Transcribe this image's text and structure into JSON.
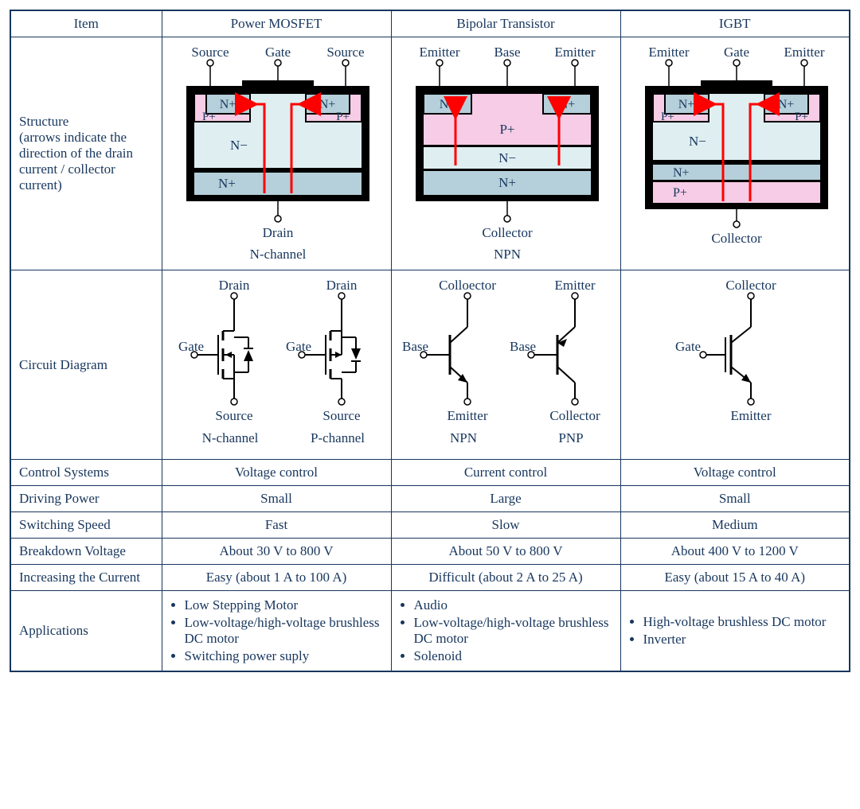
{
  "colors": {
    "text": "#17365d",
    "black": "#000000",
    "nplus_fill": "#b5d0da",
    "nminus_fill": "#dfeef1",
    "pplus_fill": "#f7cce6",
    "arrow": "#ff0000"
  },
  "headers": {
    "item": "Item",
    "c1": "Power MOSFET",
    "c2": "Bipolar Transistor",
    "c3": "IGBT"
  },
  "rows": {
    "structure": "Structure\n(arrows indicate the direction of the drain current / collector current)",
    "circuit": "Circuit Diagram",
    "control": "Control Systems",
    "driving": "Driving Power",
    "switching": "Switching Speed",
    "breakdown": "Breakdown Voltage",
    "current": "Increasing the Current",
    "apps": "Applications"
  },
  "structure": {
    "mosfet": {
      "top_terms": [
        "Source",
        "Gate",
        "Source"
      ],
      "bottom_term": "Drain",
      "caption": "N-channel",
      "layers": [
        {
          "label": "N+",
          "color": "#b5d0da"
        },
        {
          "label": "P+",
          "color": "#f7cce6"
        },
        {
          "label": "N−",
          "color": "#dfeef1"
        },
        {
          "label": "N+",
          "color": "#b5d0da"
        }
      ]
    },
    "bjt": {
      "top_terms": [
        "Emitter",
        "Base",
        "Emitter"
      ],
      "bottom_term": "Collector",
      "caption": "NPN",
      "layers": [
        {
          "label": "N+",
          "color": "#b5d0da"
        },
        {
          "label": "P+",
          "color": "#f7cce6"
        },
        {
          "label": "N−",
          "color": "#dfeef1"
        },
        {
          "label": "N+",
          "color": "#b5d0da"
        }
      ]
    },
    "igbt": {
      "top_terms": [
        "Emitter",
        "Gate",
        "Emitter"
      ],
      "bottom_term": "Collector",
      "caption": "",
      "layers": [
        {
          "label": "N+",
          "color": "#b5d0da"
        },
        {
          "label": "P+",
          "color": "#f7cce6"
        },
        {
          "label": "N−",
          "color": "#dfeef1"
        },
        {
          "label": "N+",
          "color": "#b5d0da"
        },
        {
          "label": "P+",
          "color": "#f7cce6"
        }
      ]
    }
  },
  "circuit": {
    "mosfet": {
      "left": {
        "top": "Drain",
        "left": "Gate",
        "bottom": "Source",
        "caption": "N-channel"
      },
      "right": {
        "top": "Drain",
        "left": "Gate",
        "bottom": "Source",
        "caption": "P-channel"
      }
    },
    "bjt": {
      "left": {
        "top": "Colloector",
        "left": "Base",
        "bottom": "Emitter",
        "caption": "NPN"
      },
      "right": {
        "top": "Emitter",
        "left": "Base",
        "bottom": "Collector",
        "caption": "PNP"
      }
    },
    "igbt": {
      "top": "Collector",
      "left": "Gate",
      "bottom": "Emitter"
    }
  },
  "control": {
    "c1": "Voltage control",
    "c2": "Current control",
    "c3": "Voltage control"
  },
  "driving": {
    "c1": "Small",
    "c2": "Large",
    "c3": "Small"
  },
  "switching": {
    "c1": "Fast",
    "c2": "Slow",
    "c3": "Medium"
  },
  "breakdown": {
    "c1": "About 30 V to 800 V",
    "c2": "About 50 V to 800 V",
    "c3": "About 400 V to 1200 V"
  },
  "current": {
    "c1": "Easy (about 1 A to 100 A)",
    "c2": "Difficult (about 2 A to 25 A)",
    "c3": "Easy (about 15 A to 40 A)"
  },
  "apps": {
    "c1": [
      "Low Stepping Motor",
      "Low-voltage/high-voltage brushless DC motor",
      "Switching power suply"
    ],
    "c2": [
      "Audio",
      "Low-voltage/high-voltage brushless DC motor",
      "Solenoid"
    ],
    "c3": [
      "High-voltage brushless DC motor",
      "Inverter"
    ]
  }
}
